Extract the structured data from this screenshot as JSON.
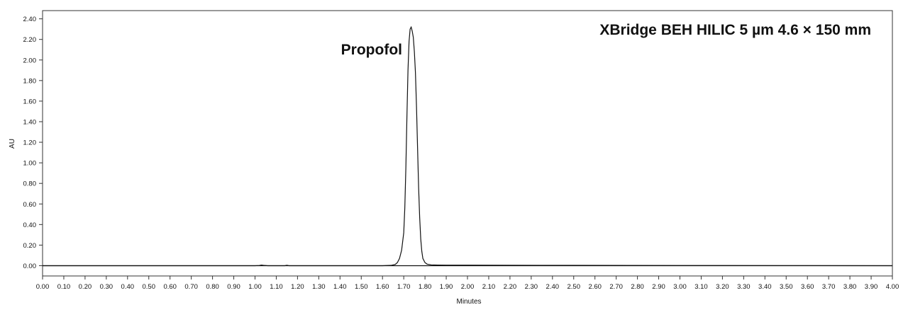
{
  "chart_data": {
    "type": "line",
    "title": "XBridge BEH HILIC 5 µm 4.6 × 150 mm",
    "xlabel": "Minutes",
    "ylabel": "AU",
    "xlim": [
      0.0,
      4.0
    ],
    "ylim": [
      -0.1,
      2.48
    ],
    "grid": false,
    "legend": "none",
    "x_ticks": [
      "0.00",
      "0.10",
      "0.20",
      "0.30",
      "0.40",
      "0.50",
      "0.60",
      "0.70",
      "0.80",
      "0.90",
      "1.00",
      "1.10",
      "1.20",
      "1.30",
      "1.40",
      "1.50",
      "1.60",
      "1.70",
      "1.80",
      "1.90",
      "2.00",
      "2.10",
      "2.20",
      "2.30",
      "2.40",
      "2.50",
      "2.60",
      "2.70",
      "2.80",
      "2.90",
      "3.00",
      "3.10",
      "3.20",
      "3.30",
      "3.40",
      "3.50",
      "3.60",
      "3.70",
      "3.80",
      "3.90",
      "4.00"
    ],
    "y_ticks": [
      "0.00",
      "0.20",
      "0.40",
      "0.60",
      "0.80",
      "1.00",
      "1.20",
      "1.40",
      "1.60",
      "1.80",
      "2.00",
      "2.20",
      "2.40"
    ],
    "annotations": [
      {
        "text": "Propofol",
        "x": 1.74,
        "y": 2.32
      }
    ],
    "line_color": "#111111",
    "series": [
      {
        "x": [
          0.0,
          0.5,
          1.0,
          1.02,
          1.03,
          1.04,
          1.06,
          1.14,
          1.15,
          1.16,
          1.3,
          1.5,
          1.6,
          1.64,
          1.66,
          1.67,
          1.68,
          1.69,
          1.7,
          1.705,
          1.71,
          1.715,
          1.72,
          1.725,
          1.73,
          1.735,
          1.74,
          1.745,
          1.75,
          1.755,
          1.76,
          1.765,
          1.77,
          1.775,
          1.78,
          1.785,
          1.79,
          1.8,
          1.81,
          1.83,
          1.86,
          1.9,
          2.0,
          2.5,
          3.0,
          3.5,
          4.0
        ],
        "y": [
          0.0,
          0.0,
          0.0,
          0.002,
          0.006,
          0.003,
          0.0,
          0.0,
          0.004,
          0.0,
          0.0,
          0.0,
          0.0,
          0.003,
          0.012,
          0.03,
          0.07,
          0.15,
          0.32,
          0.56,
          0.95,
          1.45,
          1.9,
          2.18,
          2.3,
          2.32,
          2.28,
          2.22,
          2.08,
          1.88,
          1.55,
          1.15,
          0.76,
          0.47,
          0.26,
          0.14,
          0.07,
          0.03,
          0.015,
          0.008,
          0.006,
          0.005,
          0.005,
          0.003,
          0.002,
          0.001,
          0.0
        ]
      }
    ]
  }
}
